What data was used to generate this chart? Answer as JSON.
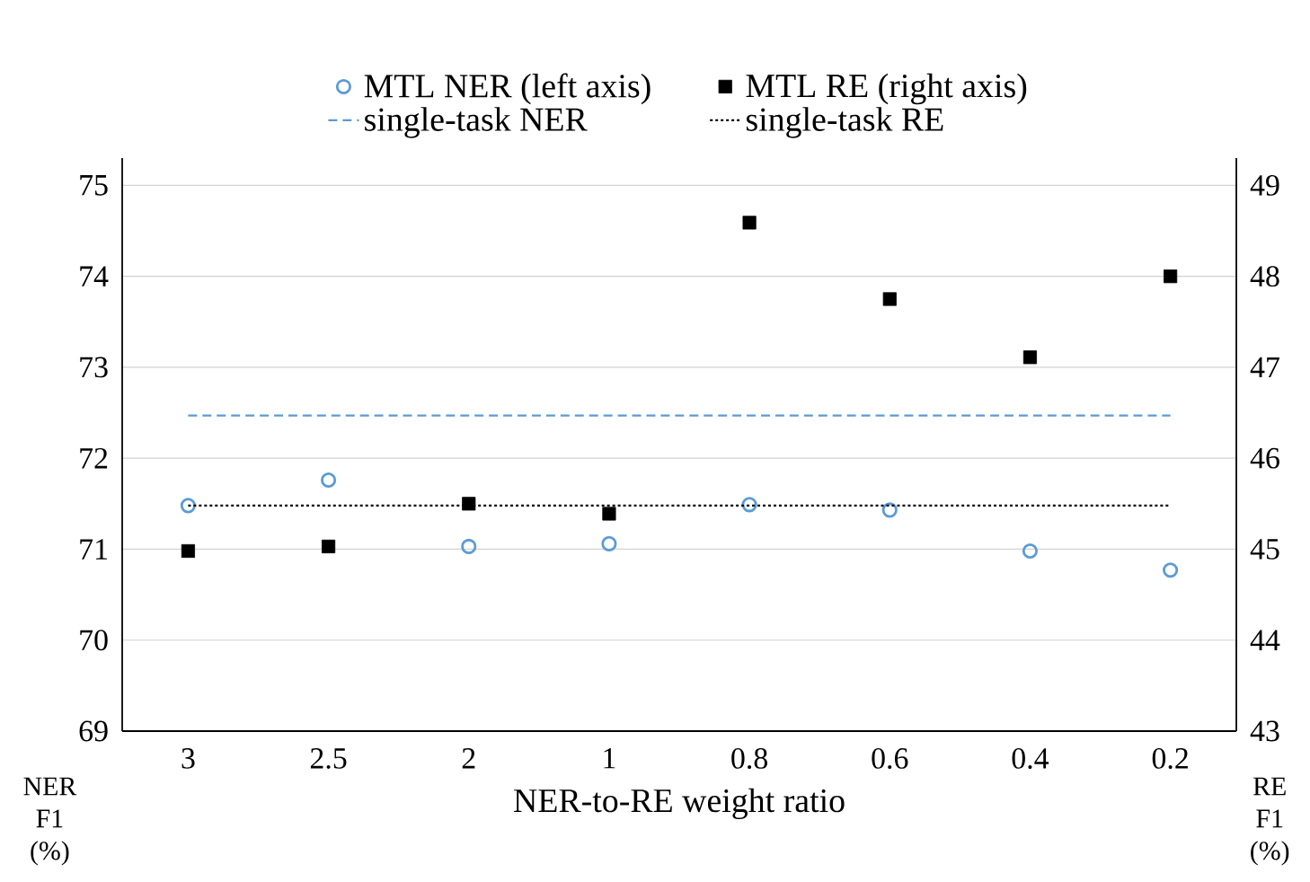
{
  "chart_data": {
    "type": "scatter",
    "xlabel": "NER-to-RE weight ratio",
    "ylabel": "NER F1 (%)",
    "y2label": "RE F1 (%)",
    "categories": [
      "3",
      "2.5",
      "2",
      "1",
      "0.8",
      "0.6",
      "0.4",
      "0.2"
    ],
    "series": [
      {
        "name": "MTL NER (left axis)",
        "marker": "circle",
        "color": "#5b9bd5",
        "values": [
          71.48,
          71.76,
          71.03,
          71.06,
          71.49,
          71.43,
          70.98,
          70.77
        ]
      },
      {
        "name": "MTL RE (right axis)",
        "marker": "square",
        "color": "#000000",
        "axis": "y2",
        "values": [
          44.98,
          45.03,
          45.5,
          45.39,
          48.59,
          47.75,
          47.11,
          48.0
        ]
      },
      {
        "name": "single-task NER",
        "type": "line",
        "marker": "none",
        "line_style": "dashed",
        "color": "#5b9bd5",
        "values": [
          72.47,
          72.47,
          72.47,
          72.47,
          72.47,
          72.47,
          72.47,
          72.47
        ]
      },
      {
        "name": "single-task RE",
        "type": "line",
        "marker": "none",
        "line_style": "dotted",
        "color": "#000000",
        "axis": "y2",
        "values": [
          45.48,
          45.48,
          45.48,
          45.48,
          45.48,
          45.48,
          45.48,
          45.48
        ]
      }
    ],
    "ylim": [
      69,
      75.3
    ],
    "yticks": [
      69,
      70,
      71,
      72,
      73,
      74,
      75
    ],
    "y2lim": [
      43,
      49.3
    ],
    "y2ticks": [
      43,
      44,
      45,
      46,
      47,
      48,
      49
    ],
    "grid": "y",
    "legend": "top"
  }
}
